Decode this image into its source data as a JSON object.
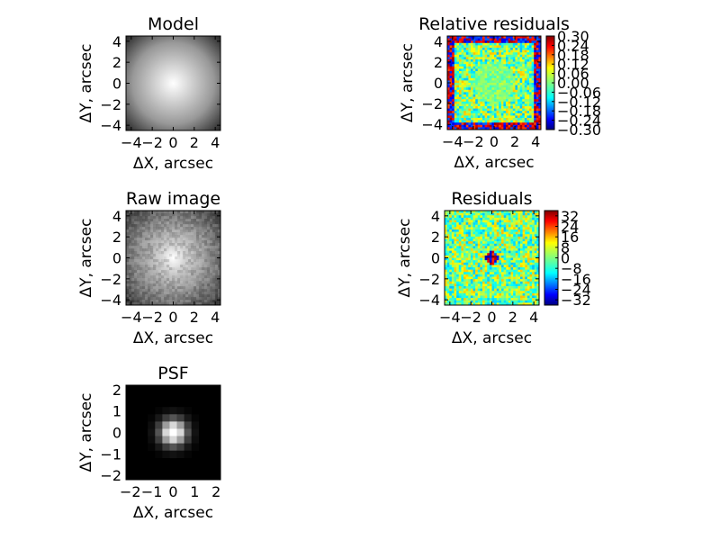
{
  "chart_data": [
    {
      "type": "heatmap",
      "title": "Model",
      "xlabel": "ΔX, arcsec",
      "ylabel": "ΔY, arcsec",
      "xlim": [
        -4.5,
        4.5
      ],
      "ylim": [
        -4.5,
        4.5
      ],
      "xticks": [
        "−4",
        "−2",
        "0",
        "2",
        "4"
      ],
      "yticks": [
        "4",
        "2",
        "0",
        "−2",
        "−4"
      ],
      "colormap": "gray",
      "center": [
        0,
        0
      ],
      "colorbar": null
    },
    {
      "type": "heatmap",
      "title": "Relative residuals",
      "xlabel": "ΔX, arcsec",
      "ylabel": "ΔY, arcsec",
      "xlim": [
        -4.5,
        4.5
      ],
      "ylim": [
        -4.5,
        4.5
      ],
      "xticks": [
        "−4",
        "−2",
        "0",
        "2",
        "4"
      ],
      "yticks": [
        "4",
        "2",
        "0",
        "−2",
        "−4"
      ],
      "colormap": "jet",
      "colorbar": {
        "range": [
          -0.3,
          0.3
        ],
        "ticks": [
          "0.30",
          "0.24",
          "0.18",
          "0.12",
          "0.06",
          "0.00",
          "−0.06",
          "−0.12",
          "−0.18",
          "−0.24",
          "−0.30"
        ]
      }
    },
    {
      "type": "heatmap",
      "title": "Raw image",
      "xlabel": "ΔX, arcsec",
      "ylabel": "ΔY, arcsec",
      "xlim": [
        -4.5,
        4.5
      ],
      "ylim": [
        -4.5,
        4.5
      ],
      "xticks": [
        "−4",
        "−2",
        "0",
        "2",
        "4"
      ],
      "yticks": [
        "4",
        "2",
        "0",
        "−2",
        "−4"
      ],
      "colormap": "gray",
      "center": [
        0,
        0
      ],
      "colorbar": null
    },
    {
      "type": "heatmap",
      "title": "Residuals",
      "xlabel": "ΔX, arcsec",
      "ylabel": "ΔY, arcsec",
      "xlim": [
        -4.5,
        4.5
      ],
      "ylim": [
        -4.5,
        4.5
      ],
      "xticks": [
        "−4",
        "−2",
        "0",
        "2",
        "4"
      ],
      "yticks": [
        "4",
        "2",
        "0",
        "−2",
        "−4"
      ],
      "colormap": "jet",
      "colorbar": {
        "range": [
          -36,
          36
        ],
        "ticks": [
          "32",
          "24",
          "16",
          "8",
          "0",
          "−8",
          "−16",
          "−24",
          "−32"
        ]
      }
    },
    {
      "type": "heatmap",
      "title": "PSF",
      "xlabel": "ΔX, arcsec",
      "ylabel": "ΔY, arcsec",
      "xlim": [
        -2.2,
        2.2
      ],
      "ylim": [
        -2.2,
        2.2
      ],
      "xticks": [
        "−2",
        "−1",
        "0",
        "1",
        "2"
      ],
      "yticks": [
        "2",
        "1",
        "0",
        "−1",
        "−2"
      ],
      "colormap": "gray",
      "center": [
        0,
        0
      ],
      "colorbar": null
    }
  ]
}
